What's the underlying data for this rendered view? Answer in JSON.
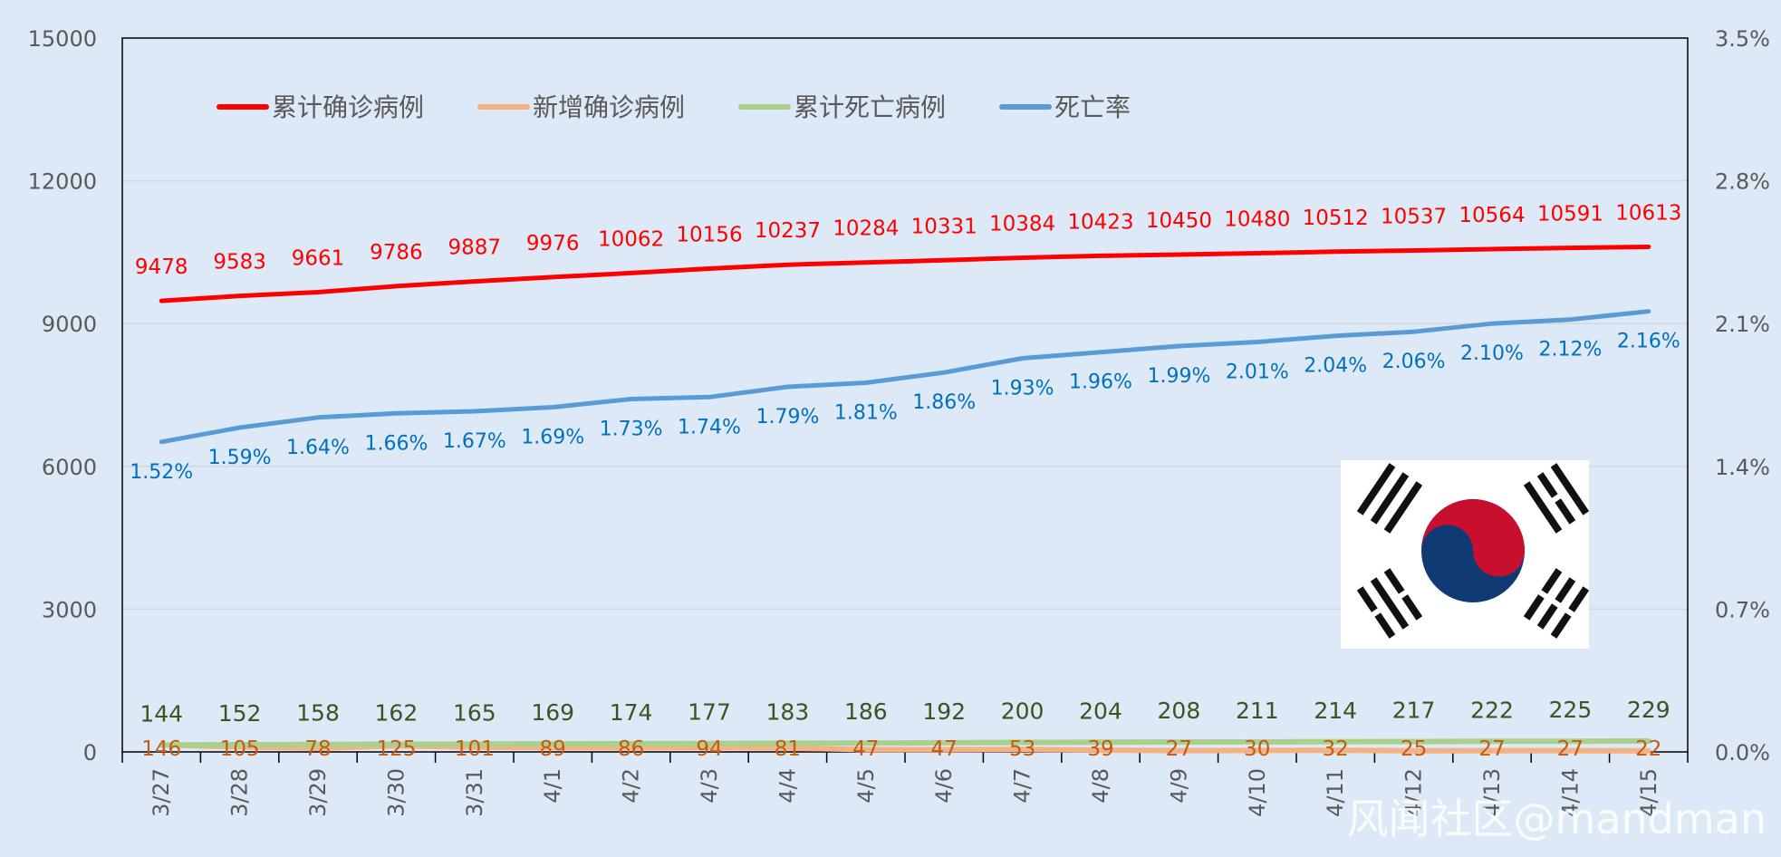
{
  "chart_data": {
    "type": "line",
    "categories": [
      "3/27",
      "3/28",
      "3/29",
      "3/30",
      "3/31",
      "4/1",
      "4/2",
      "4/3",
      "4/4",
      "4/5",
      "4/6",
      "4/7",
      "4/8",
      "4/9",
      "4/10",
      "4/11",
      "4/12",
      "4/13",
      "4/14",
      "4/15"
    ],
    "y_left": {
      "range": [
        0,
        15000
      ],
      "ticks": [
        "0",
        "3000",
        "6000",
        "9000",
        "12000",
        "15000"
      ]
    },
    "y_right": {
      "range": [
        0,
        3.5
      ],
      "ticks": [
        "0.0%",
        "0.7%",
        "1.4%",
        "2.1%",
        "2.8%",
        "3.5%"
      ]
    },
    "grid": true,
    "legend_position": "top-left",
    "series": [
      {
        "name": "累计确诊病例",
        "axis": "left",
        "color": "#ff0000",
        "values": [
          9478,
          9583,
          9661,
          9786,
          9887,
          9976,
          10062,
          10156,
          10237,
          10284,
          10331,
          10384,
          10423,
          10450,
          10480,
          10512,
          10537,
          10564,
          10591,
          10613
        ],
        "labels": [
          "9478",
          "9583",
          "9661",
          "9786",
          "9887",
          "9976",
          "10062",
          "10156",
          "10237",
          "10284",
          "10331",
          "10384",
          "10423",
          "10450",
          "10480",
          "10512",
          "10537",
          "10564",
          "10591",
          "10613"
        ]
      },
      {
        "name": "新增确诊病例",
        "axis": "left",
        "color": "#f4b183",
        "values": [
          146,
          105,
          78,
          125,
          101,
          89,
          86,
          94,
          81,
          47,
          47,
          53,
          39,
          27,
          30,
          32,
          25,
          27,
          27,
          22
        ],
        "labels": [
          "146",
          "105",
          "78",
          "125",
          "101",
          "89",
          "86",
          "94",
          "81",
          "47",
          "47",
          "53",
          "39",
          "27",
          "30",
          "32",
          "25",
          "27",
          "27",
          "22"
        ]
      },
      {
        "name": "累计死亡病例",
        "axis": "left",
        "color": "#a9d18e",
        "values": [
          144,
          152,
          158,
          162,
          165,
          169,
          174,
          177,
          183,
          186,
          192,
          200,
          204,
          208,
          211,
          214,
          217,
          222,
          225,
          229
        ],
        "labels": [
          "144",
          "152",
          "158",
          "162",
          "165",
          "169",
          "174",
          "177",
          "183",
          "186",
          "192",
          "200",
          "204",
          "208",
          "211",
          "214",
          "217",
          "222",
          "225",
          "229"
        ]
      },
      {
        "name": "死亡率",
        "axis": "right",
        "color": "#5b9bd5",
        "values": [
          1.52,
          1.59,
          1.64,
          1.66,
          1.67,
          1.69,
          1.73,
          1.74,
          1.79,
          1.81,
          1.86,
          1.93,
          1.96,
          1.99,
          2.01,
          2.04,
          2.06,
          2.1,
          2.12,
          2.16
        ],
        "labels": [
          "1.52%",
          "1.59%",
          "1.64%",
          "1.66%",
          "1.67%",
          "1.69%",
          "1.73%",
          "1.74%",
          "1.79%",
          "1.81%",
          "1.86%",
          "1.93%",
          "1.96%",
          "1.99%",
          "2.01%",
          "2.04%",
          "2.06%",
          "2.10%",
          "2.12%",
          "2.16%"
        ]
      }
    ],
    "flag_icon": "south-korea-flag-icon",
    "watermark": "风闻社区@mandman"
  }
}
